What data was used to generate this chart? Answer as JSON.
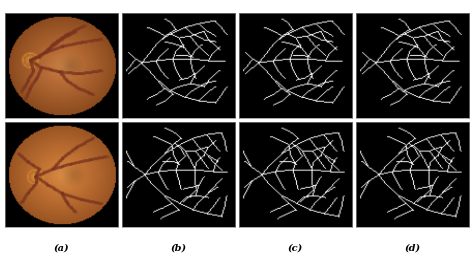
{
  "figure_bg": "#ffffff",
  "labels": [
    "(a)",
    "(b)",
    "(c)",
    "(d)"
  ],
  "label_fontsize": 7,
  "n_cols": 4,
  "n_rows": 2,
  "vessel_color": [
    255,
    255,
    255
  ],
  "panel_bg": [
    0,
    0,
    0
  ]
}
